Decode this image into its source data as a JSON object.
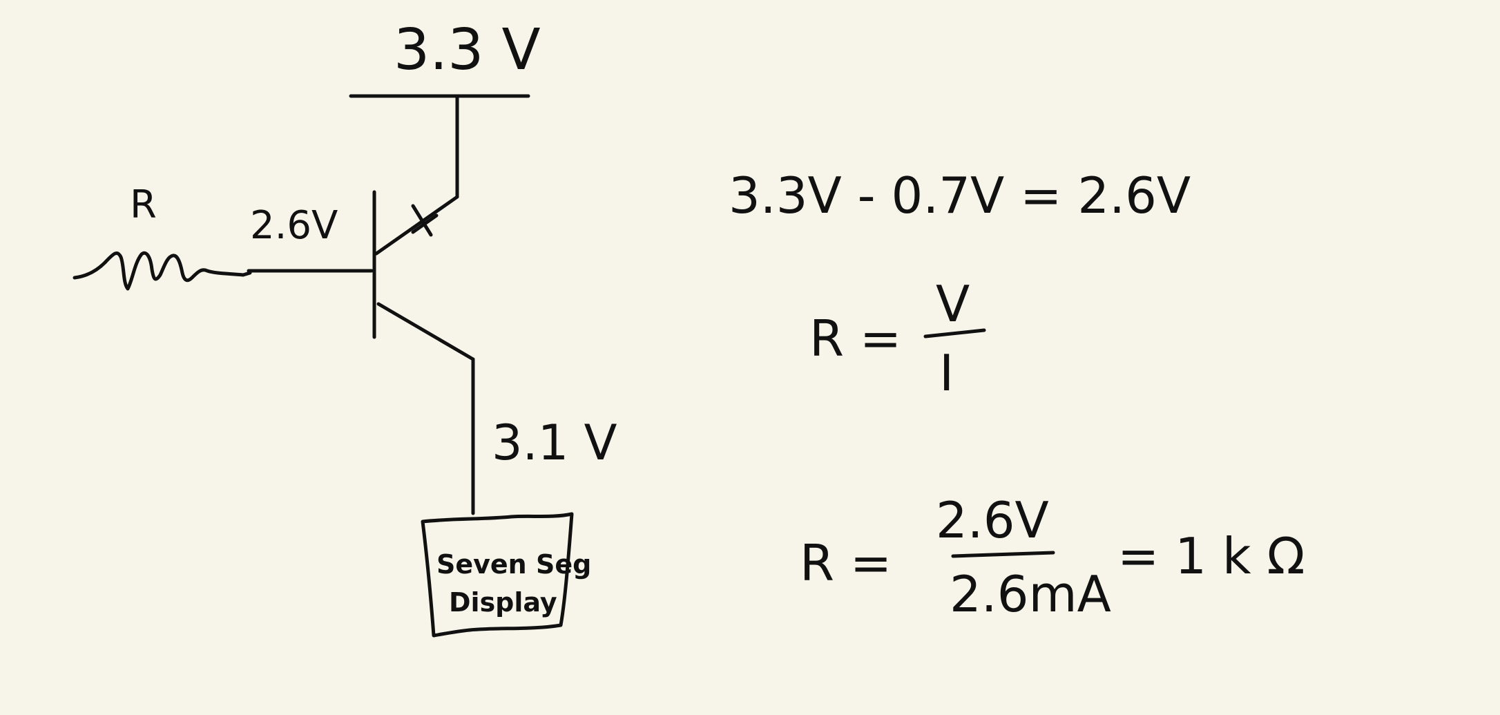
{
  "circuit": {
    "supply_label": "3.3 V",
    "resistor_label": "R",
    "base_voltage_label": "2.6V",
    "collector_voltage_label": "3.1 V",
    "load": {
      "line1": "Seven Seg",
      "line2": "Display"
    }
  },
  "equations": {
    "eq1": "3.3V - 0.7V = 2.6V",
    "eq2": {
      "lhs": "R =",
      "numerator": "V",
      "denominator": "I"
    },
    "eq3": {
      "lhs": "R =",
      "numerator": "2.6V",
      "denominator": "2.6mA",
      "result": "= 1 k Ω"
    }
  }
}
